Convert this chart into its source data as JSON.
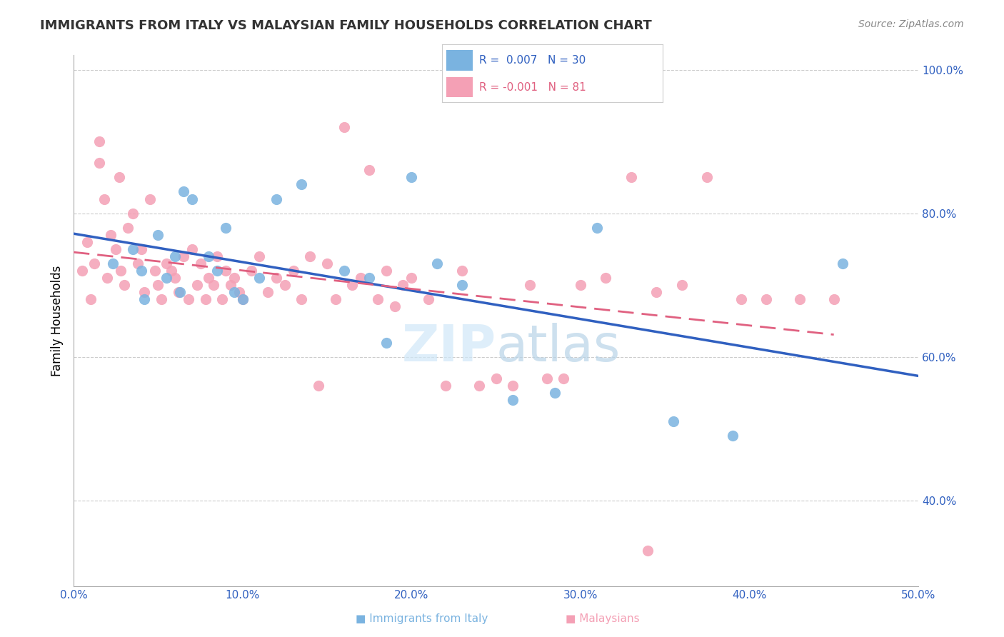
{
  "title": "IMMIGRANTS FROM ITALY VS MALAYSIAN FAMILY HOUSEHOLDS CORRELATION CHART",
  "source": "Source: ZipAtlas.com",
  "xlabel_bottom": "",
  "ylabel_left": "Family Households",
  "ylabel_right": "",
  "xmin": 0.0,
  "xmax": 0.5,
  "ymin": 0.28,
  "ymax": 1.02,
  "right_yticks": [
    0.4,
    0.6,
    0.8,
    1.0
  ],
  "right_yticklabels": [
    "40.0%",
    "60.0%",
    "80.0%",
    "100.0%"
  ],
  "xticks": [
    0.0,
    0.1,
    0.2,
    0.3,
    0.4,
    0.5
  ],
  "xticklabels": [
    "0.0%",
    "10.0%",
    "20.0%",
    "30.0%",
    "40.0%",
    "50.0%"
  ],
  "color_blue": "#7ab3e0",
  "color_pink": "#f4a0b5",
  "color_blue_line": "#3060c0",
  "color_pink_line": "#e06080",
  "legend_r1": "R =  0.007",
  "legend_n1": "N = 30",
  "legend_r2": "R = -0.001",
  "legend_n2": " 81",
  "watermark": "ZIPatlas",
  "blue_scatter_x": [
    0.023,
    0.035,
    0.04,
    0.042,
    0.05,
    0.055,
    0.06,
    0.063,
    0.065,
    0.07,
    0.08,
    0.085,
    0.09,
    0.095,
    0.1,
    0.11,
    0.12,
    0.135,
    0.16,
    0.175,
    0.185,
    0.2,
    0.215,
    0.23,
    0.26,
    0.285,
    0.31,
    0.355,
    0.39,
    0.455
  ],
  "blue_scatter_y": [
    0.73,
    0.75,
    0.72,
    0.68,
    0.77,
    0.71,
    0.74,
    0.69,
    0.83,
    0.82,
    0.74,
    0.72,
    0.78,
    0.69,
    0.68,
    0.71,
    0.82,
    0.84,
    0.72,
    0.71,
    0.62,
    0.85,
    0.73,
    0.7,
    0.54,
    0.55,
    0.78,
    0.51,
    0.49,
    0.73
  ],
  "pink_scatter_x": [
    0.005,
    0.008,
    0.01,
    0.012,
    0.015,
    0.015,
    0.018,
    0.02,
    0.022,
    0.025,
    0.027,
    0.028,
    0.03,
    0.032,
    0.035,
    0.038,
    0.04,
    0.042,
    0.045,
    0.048,
    0.05,
    0.052,
    0.055,
    0.058,
    0.06,
    0.062,
    0.065,
    0.068,
    0.07,
    0.073,
    0.075,
    0.078,
    0.08,
    0.083,
    0.085,
    0.088,
    0.09,
    0.093,
    0.095,
    0.098,
    0.1,
    0.105,
    0.11,
    0.115,
    0.12,
    0.125,
    0.13,
    0.135,
    0.14,
    0.145,
    0.15,
    0.155,
    0.16,
    0.165,
    0.17,
    0.175,
    0.18,
    0.185,
    0.19,
    0.195,
    0.2,
    0.21,
    0.22,
    0.23,
    0.24,
    0.25,
    0.26,
    0.27,
    0.28,
    0.29,
    0.3,
    0.315,
    0.33,
    0.345,
    0.36,
    0.375,
    0.395,
    0.41,
    0.43,
    0.45,
    0.34
  ],
  "pink_scatter_y": [
    0.72,
    0.76,
    0.68,
    0.73,
    0.9,
    0.87,
    0.82,
    0.71,
    0.77,
    0.75,
    0.85,
    0.72,
    0.7,
    0.78,
    0.8,
    0.73,
    0.75,
    0.69,
    0.82,
    0.72,
    0.7,
    0.68,
    0.73,
    0.72,
    0.71,
    0.69,
    0.74,
    0.68,
    0.75,
    0.7,
    0.73,
    0.68,
    0.71,
    0.7,
    0.74,
    0.68,
    0.72,
    0.7,
    0.71,
    0.69,
    0.68,
    0.72,
    0.74,
    0.69,
    0.71,
    0.7,
    0.72,
    0.68,
    0.74,
    0.56,
    0.73,
    0.68,
    0.92,
    0.7,
    0.71,
    0.86,
    0.68,
    0.72,
    0.67,
    0.7,
    0.71,
    0.68,
    0.56,
    0.72,
    0.56,
    0.57,
    0.56,
    0.7,
    0.57,
    0.57,
    0.7,
    0.71,
    0.85,
    0.69,
    0.7,
    0.85,
    0.68,
    0.68,
    0.68,
    0.68,
    0.33
  ],
  "blue_trend": [
    0.007,
    0.7295,
    0.7367
  ],
  "pink_trend": [
    -0.001,
    0.7215,
    0.686
  ],
  "figsize": [
    14.06,
    8.92
  ],
  "dpi": 100
}
